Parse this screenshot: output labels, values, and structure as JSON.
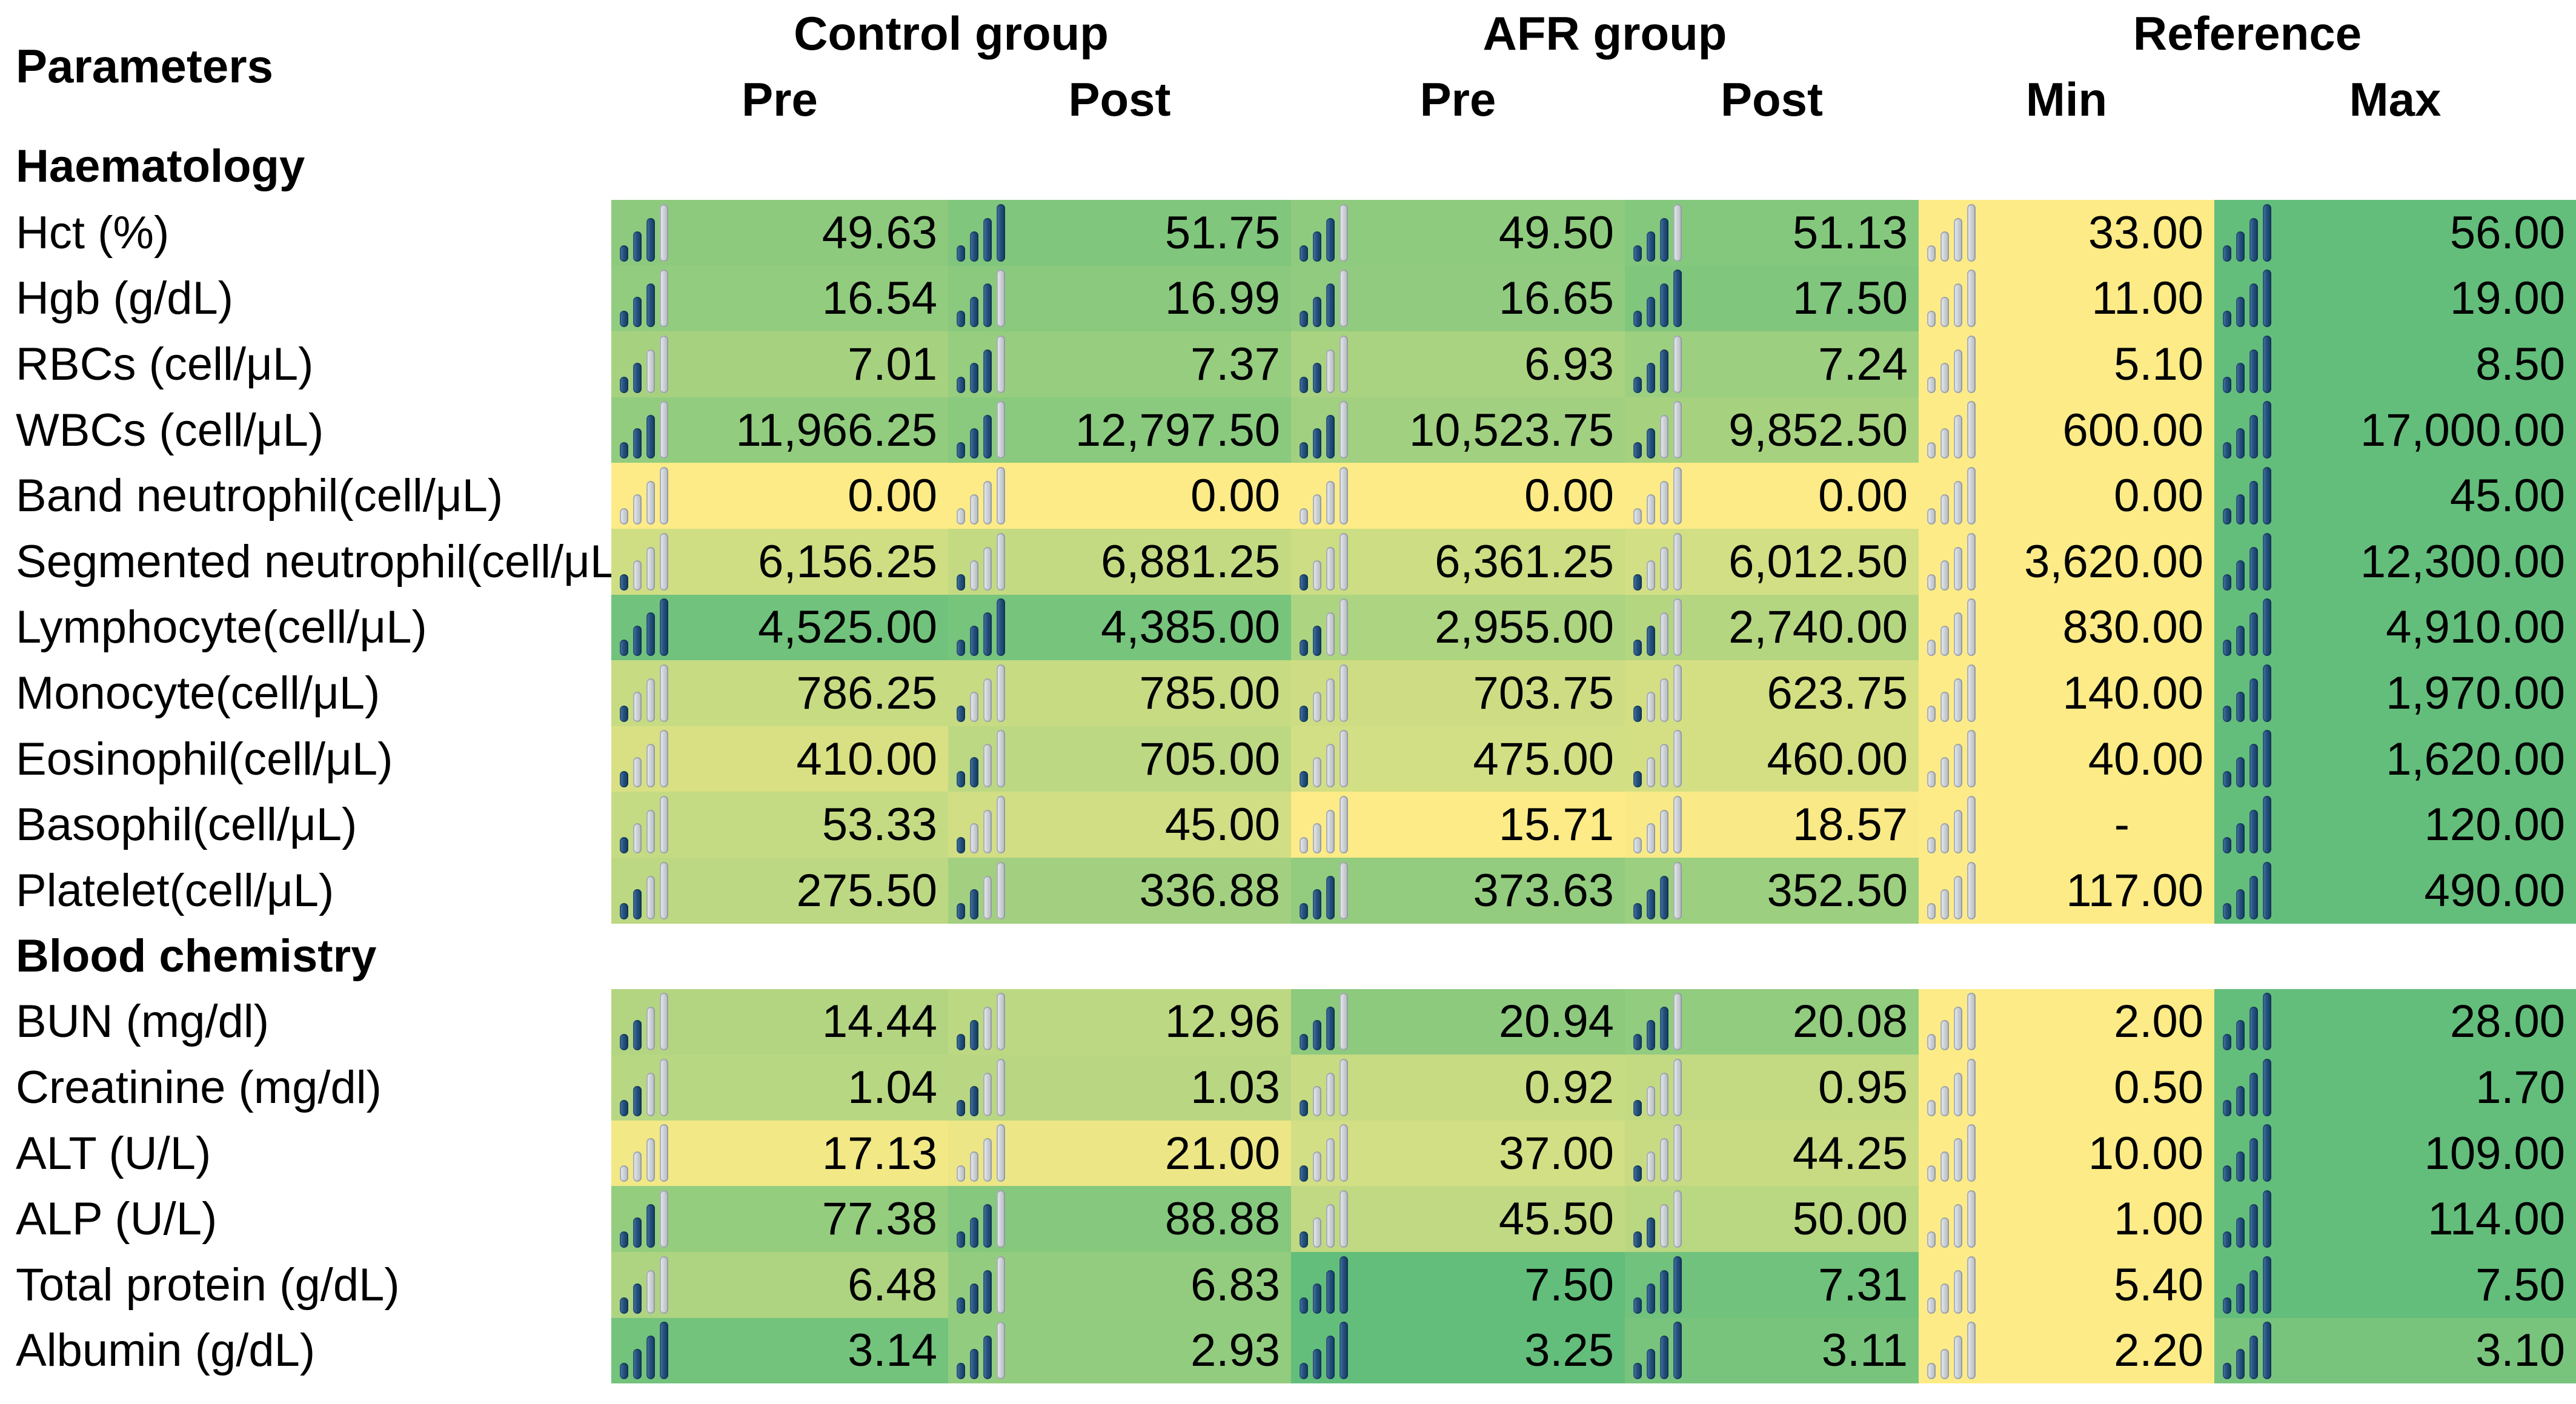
{
  "table": {
    "corner_label": "Parameters",
    "groups": [
      {
        "label": "Control group",
        "subs": [
          "Pre",
          "Post"
        ]
      },
      {
        "label": "AFR group",
        "subs": [
          "Pre",
          "Post"
        ]
      },
      {
        "label": "Reference",
        "subs": [
          "Min",
          "Max"
        ]
      }
    ],
    "legend": {
      "icon_name": "signal-bars-icon",
      "bar_filled_color": "#1F4E79",
      "bar_empty_color": "#C9CED3",
      "scale_min_color": "#FDEB87",
      "scale_max_color": "#63BE7B"
    },
    "sections": [
      {
        "title": "Haematology",
        "rows": [
          {
            "label": "Hct (%)",
            "cells": [
              {
                "v": "49.63",
                "bg": "#8ECA7E",
                "bars": 3
              },
              {
                "v": "51.75",
                "bg": "#80C67D",
                "bars": 4
              },
              {
                "v": "49.50",
                "bg": "#8FCB7E",
                "bars": 3
              },
              {
                "v": "51.13",
                "bg": "#84C87E",
                "bars": 3
              },
              {
                "v": "33.00",
                "bg": "#FDEB87",
                "bars": 0
              },
              {
                "v": "56.00",
                "bg": "#63BE7B",
                "bars": 4
              }
            ]
          },
          {
            "label": "Hgb (g/dL)",
            "cells": [
              {
                "v": "16.54",
                "bg": "#92CC7F",
                "bars": 3
              },
              {
                "v": "16.99",
                "bg": "#8AC97E",
                "bars": 3
              },
              {
                "v": "16.65",
                "bg": "#90CB7F",
                "bars": 3
              },
              {
                "v": "17.50",
                "bg": "#80C67D",
                "bars": 4
              },
              {
                "v": "11.00",
                "bg": "#FDEB87",
                "bars": 0
              },
              {
                "v": "19.00",
                "bg": "#63BE7B",
                "bars": 4
              }
            ]
          },
          {
            "label": "RBCs (cell/μL)",
            "cells": [
              {
                "v": "7.01",
                "bg": "#A6D280",
                "bars": 2
              },
              {
                "v": "7.37",
                "bg": "#96CD7F",
                "bars": 3
              },
              {
                "v": "6.93",
                "bg": "#AAD381",
                "bars": 2
              },
              {
                "v": "7.24",
                "bg": "#9CCF80",
                "bars": 3
              },
              {
                "v": "5.10",
                "bg": "#FDEB87",
                "bars": 0
              },
              {
                "v": "8.50",
                "bg": "#63BE7B",
                "bars": 4
              }
            ]
          },
          {
            "label": "WBCs (cell/μL)",
            "cells": [
              {
                "v": "11,966.25",
                "bg": "#92CC7F",
                "bars": 3
              },
              {
                "v": "12,797.50",
                "bg": "#8ACA7E",
                "bars": 3
              },
              {
                "v": "10,523.75",
                "bg": "#A0D080",
                "bars": 3
              },
              {
                "v": "9,852.50",
                "bg": "#A6D280",
                "bars": 2
              },
              {
                "v": "600.00",
                "bg": "#FDEB87",
                "bars": 0
              },
              {
                "v": "17,000.00",
                "bg": "#63BE7B",
                "bars": 4
              }
            ]
          },
          {
            "label": "Band neutrophil(cell/μL)",
            "cells": [
              {
                "v": "0.00",
                "bg": "#FDEB87",
                "bars": 0
              },
              {
                "v": "0.00",
                "bg": "#FDEB87",
                "bars": 0
              },
              {
                "v": "0.00",
                "bg": "#FDEB87",
                "bars": 0
              },
              {
                "v": "0.00",
                "bg": "#FDEB87",
                "bars": 0
              },
              {
                "v": "0.00",
                "bg": "#FDEB87",
                "bars": 0
              },
              {
                "v": "45.00",
                "bg": "#63BE7B",
                "bars": 4
              }
            ]
          },
          {
            "label": "Segmented neutrophil(cell/μL",
            "cells": [
              {
                "v": "6,156.25",
                "bg": "#D0DE83",
                "bars": 1
              },
              {
                "v": "6,881.25",
                "bg": "#C3DA82",
                "bars": 1
              },
              {
                "v": "6,361.25",
                "bg": "#CCDD83",
                "bars": 1
              },
              {
                "v": "6,012.50",
                "bg": "#D2DF84",
                "bars": 1
              },
              {
                "v": "3,620.00",
                "bg": "#FDEB87",
                "bars": 0
              },
              {
                "v": "12,300.00",
                "bg": "#63BE7B",
                "bars": 4
              }
            ]
          },
          {
            "label": "Lymphocyte(cell/μL)",
            "cells": [
              {
                "v": "4,525.00",
                "bg": "#71C27C",
                "bars": 4
              },
              {
                "v": "4,385.00",
                "bg": "#77C47D",
                "bars": 4
              },
              {
                "v": "2,955.00",
                "bg": "#ADD481",
                "bars": 2
              },
              {
                "v": "2,740.00",
                "bg": "#B5D681",
                "bars": 2
              },
              {
                "v": "830.00",
                "bg": "#FDEB87",
                "bars": 0
              },
              {
                "v": "4,910.00",
                "bg": "#63BE7B",
                "bars": 4
              }
            ]
          },
          {
            "label": "Monocyte(cell/μL)",
            "cells": [
              {
                "v": "786.25",
                "bg": "#C7DB83",
                "bars": 1
              },
              {
                "v": "785.00",
                "bg": "#C7DB83",
                "bars": 1
              },
              {
                "v": "703.75",
                "bg": "#CEDD83",
                "bars": 1
              },
              {
                "v": "623.75",
                "bg": "#D4DF84",
                "bars": 1
              },
              {
                "v": "140.00",
                "bg": "#FDEB87",
                "bars": 0
              },
              {
                "v": "1,970.00",
                "bg": "#63BE7B",
                "bars": 4
              }
            ]
          },
          {
            "label": "Eosinophil(cell/μL)",
            "cells": [
              {
                "v": "410.00",
                "bg": "#D9E084",
                "bars": 1
              },
              {
                "v": "705.00",
                "bg": "#BCD882",
                "bars": 2
              },
              {
                "v": "475.00",
                "bg": "#D3DF84",
                "bars": 1
              },
              {
                "v": "460.00",
                "bg": "#D4DF84",
                "bars": 1
              },
              {
                "v": "40.00",
                "bg": "#FDEB87",
                "bars": 0
              },
              {
                "v": "1,620.00",
                "bg": "#63BE7B",
                "bars": 4
              }
            ]
          },
          {
            "label": "Basophil(cell/μL)",
            "cells": [
              {
                "v": "53.33",
                "bg": "#C5DB83",
                "bars": 1
              },
              {
                "v": "45.00",
                "bg": "#D2DE84",
                "bars": 1
              },
              {
                "v": "15.71",
                "bg": "#FDEB87",
                "bars": 0
              },
              {
                "v": "18.57",
                "bg": "#F9EA87",
                "bars": 0
              },
              {
                "v": "-",
                "bg": "#FDEB87",
                "bars": 0,
                "dash": true
              },
              {
                "v": "120.00",
                "bg": "#63BE7B",
                "bars": 4
              }
            ]
          },
          {
            "label": "Platelet(cell/μL)",
            "cells": [
              {
                "v": "275.50",
                "bg": "#BCD882",
                "bars": 2
              },
              {
                "v": "336.88",
                "bg": "#A2D080",
                "bars": 2
              },
              {
                "v": "373.63",
                "bg": "#93CC7F",
                "bars": 3
              },
              {
                "v": "352.50",
                "bg": "#9CCF7F",
                "bars": 3
              },
              {
                "v": "117.00",
                "bg": "#FDEB87",
                "bars": 0
              },
              {
                "v": "490.00",
                "bg": "#63BE7B",
                "bars": 4
              }
            ]
          }
        ]
      },
      {
        "title": "Blood chemistry",
        "rows": [
          {
            "label": "BUN (mg/dl)",
            "cells": [
              {
                "v": "14.44",
                "bg": "#B3D581",
                "bars": 2
              },
              {
                "v": "12.96",
                "bg": "#BCD882",
                "bars": 2
              },
              {
                "v": "20.94",
                "bg": "#8DCA7E",
                "bars": 3
              },
              {
                "v": "20.08",
                "bg": "#92CC7F",
                "bars": 3
              },
              {
                "v": "2.00",
                "bg": "#FDEB87",
                "bars": 0
              },
              {
                "v": "28.00",
                "bg": "#63BE7B",
                "bars": 4
              }
            ]
          },
          {
            "label": "Creatinine (mg/dl)",
            "cells": [
              {
                "v": "1.04",
                "bg": "#B8D782",
                "bars": 2
              },
              {
                "v": "1.03",
                "bg": "#B9D782",
                "bars": 2
              },
              {
                "v": "0.92",
                "bg": "#C7DB83",
                "bars": 1
              },
              {
                "v": "0.95",
                "bg": "#C3DA83",
                "bars": 1
              },
              {
                "v": "0.50",
                "bg": "#FDEB87",
                "bars": 0
              },
              {
                "v": "1.70",
                "bg": "#63BE7B",
                "bars": 4
              }
            ]
          },
          {
            "label": "ALT (U/L)",
            "cells": [
              {
                "v": "17.13",
                "bg": "#F2E886",
                "bars": 0
              },
              {
                "v": "21.00",
                "bg": "#ECE686",
                "bars": 0
              },
              {
                "v": "37.00",
                "bg": "#D3DF84",
                "bars": 1
              },
              {
                "v": "44.25",
                "bg": "#C8DB83",
                "bars": 1
              },
              {
                "v": "10.00",
                "bg": "#FDEB87",
                "bars": 0
              },
              {
                "v": "109.00",
                "bg": "#63BE7B",
                "bars": 4
              }
            ]
          },
          {
            "label": "ALP (U/L)",
            "cells": [
              {
                "v": "77.38",
                "bg": "#95CD7F",
                "bars": 3
              },
              {
                "v": "88.88",
                "bg": "#85C87E",
                "bars": 3
              },
              {
                "v": "45.50",
                "bg": "#C0D982",
                "bars": 1
              },
              {
                "v": "50.00",
                "bg": "#BAD782",
                "bars": 2
              },
              {
                "v": "1.00",
                "bg": "#FDEB87",
                "bars": 0
              },
              {
                "v": "114.00",
                "bg": "#63BE7B",
                "bars": 4
              }
            ]
          },
          {
            "label": "Total protein (g/dL)",
            "cells": [
              {
                "v": "6.48",
                "bg": "#AED481",
                "bars": 2
              },
              {
                "v": "6.83",
                "bg": "#94CC7F",
                "bars": 3
              },
              {
                "v": "7.50",
                "bg": "#63BE7B",
                "bars": 4
              },
              {
                "v": "7.31",
                "bg": "#71C27C",
                "bars": 4
              },
              {
                "v": "5.40",
                "bg": "#FDEB87",
                "bars": 0
              },
              {
                "v": "7.50",
                "bg": "#63BE7B",
                "bars": 4
              }
            ]
          },
          {
            "label": "Albumin (g/dL)",
            "cells": [
              {
                "v": "3.14",
                "bg": "#73C37C",
                "bars": 4
              },
              {
                "v": "2.93",
                "bg": "#92CC7F",
                "bars": 3
              },
              {
                "v": "3.25",
                "bg": "#63BE7B",
                "bars": 4
              },
              {
                "v": "3.11",
                "bg": "#78C47D",
                "bars": 4
              },
              {
                "v": "2.20",
                "bg": "#FDEB87",
                "bars": 0
              },
              {
                "v": "3.10",
                "bg": "#79C47D",
                "bars": 4
              }
            ]
          }
        ]
      }
    ]
  }
}
